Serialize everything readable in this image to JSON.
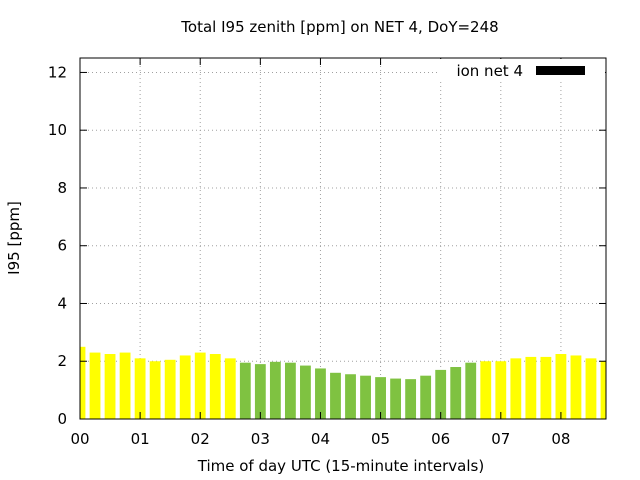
{
  "chart_data": {
    "type": "bar",
    "title": "Total I95 zenith [ppm] on NET 4, DoY=248",
    "xlabel": "Time of day UTC (15-minute intervals)",
    "ylabel": "I95 [ppm]",
    "ylim": [
      0,
      12.5
    ],
    "yticks": [
      "0",
      "2",
      "4",
      "6",
      "8",
      "10",
      "12"
    ],
    "xticks": [
      "00",
      "01",
      "02",
      "03",
      "04",
      "05",
      "06",
      "07",
      "08"
    ],
    "grid": true,
    "legend": {
      "label": "ion net 4",
      "placement": "top-right",
      "color": "#000000"
    },
    "colors": {
      "yellow": "#ffff00",
      "green": "#7fc241"
    },
    "interval_hours": 0.25,
    "start_hour": 0,
    "values": [
      2.5,
      2.3,
      2.25,
      2.3,
      2.1,
      2.0,
      2.05,
      2.2,
      2.3,
      2.25,
      2.1,
      1.95,
      1.9,
      1.98,
      1.95,
      1.85,
      1.75,
      1.6,
      1.55,
      1.5,
      1.45,
      1.4,
      1.38,
      1.5,
      1.7,
      1.8,
      1.95,
      2.0,
      2.0,
      2.1,
      2.15,
      2.15,
      2.25,
      2.2,
      2.1,
      2.0
    ],
    "bar_colors": [
      "yellow",
      "yellow",
      "yellow",
      "yellow",
      "yellow",
      "yellow",
      "yellow",
      "yellow",
      "yellow",
      "yellow",
      "yellow",
      "green",
      "green",
      "green",
      "green",
      "green",
      "green",
      "green",
      "green",
      "green",
      "green",
      "green",
      "green",
      "green",
      "green",
      "green",
      "green",
      "yellow",
      "yellow",
      "yellow",
      "yellow",
      "yellow",
      "yellow",
      "yellow",
      "yellow",
      "yellow"
    ]
  }
}
